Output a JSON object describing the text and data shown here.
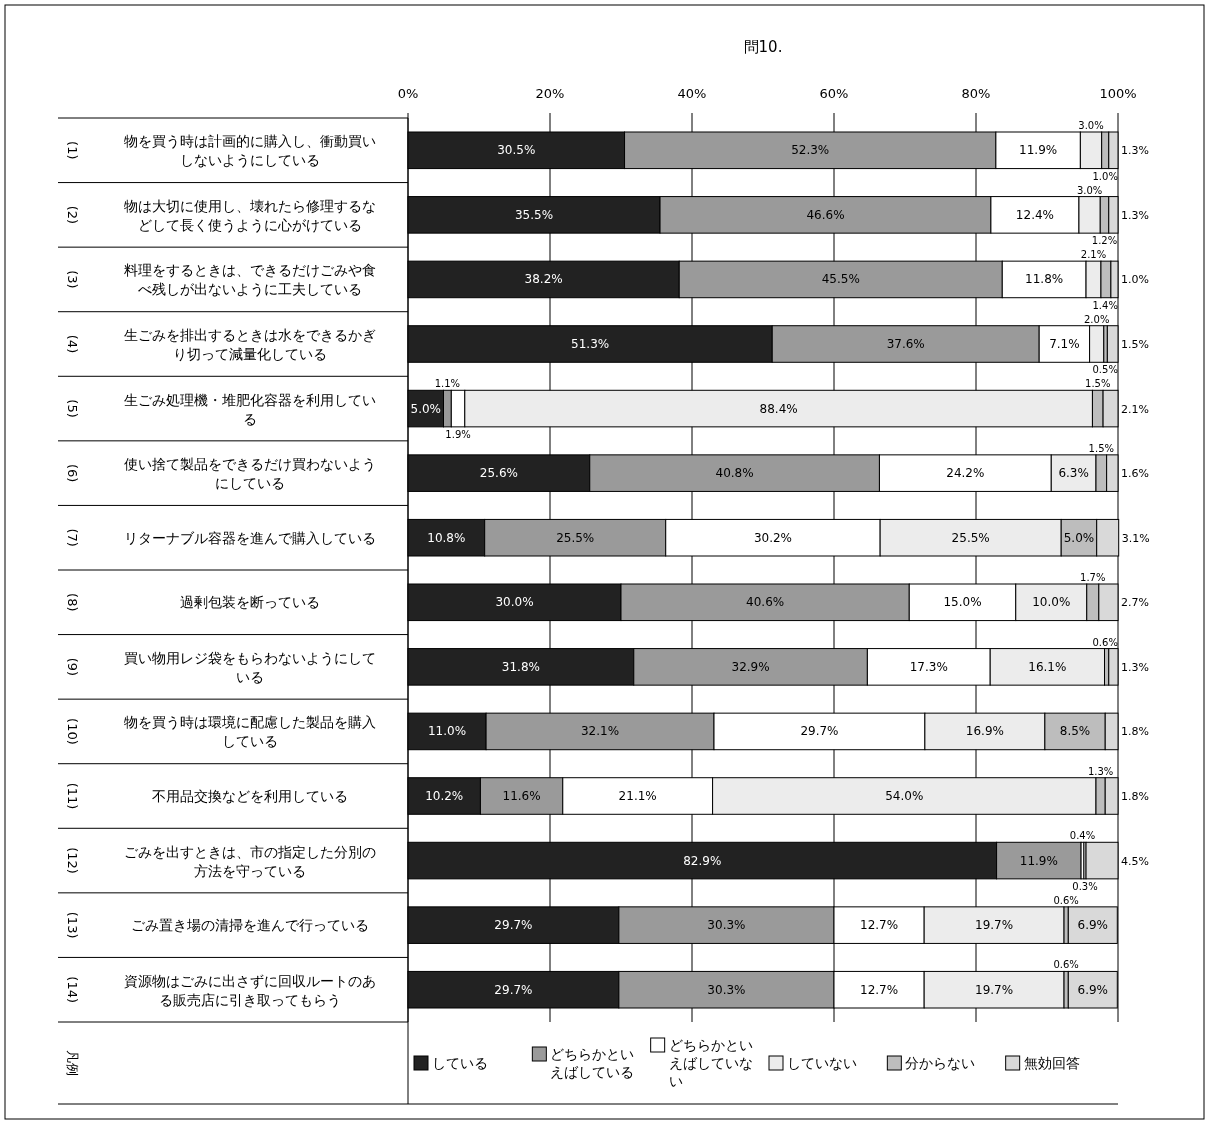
{
  "chart_data": {
    "type": "bar",
    "orientation": "horizontal",
    "stacked": true,
    "title": "問10.",
    "categories": [
      "(1) 物を買う時は計画的に購入し、衝動買いしないようにしている",
      "(2) 物は大切に使用し、壊れたら修理するなどして長く使うように心がけている",
      "(3) 料理をするときは、できるだけごみや食べ残しが出ないように工夫している",
      "(4) 生ごみを排出するときは水をできるかぎり切って減量化している",
      "(5) 生ごみ処理機・堆肥化容器を利用している",
      "(6) 使い捨て製品をできるだけ買わないようにしている",
      "(7) リターナブル容器を進んで購入している",
      "(8) 過剰包装を断っている",
      "(9) 買い物用レジ袋をもらわないようにしている",
      "(10) 物を買う時は環境に配慮した製品を購入している",
      "(11) 不用品交換などを利用している",
      "(12) ごみを出すときは、市の指定した分別の方法を守っている",
      "(13) ごみ置き場の清掃を進んで行っている",
      "(14) 資源物はごみに出さずに回収ルートのある販売店に引き取ってもらう"
    ],
    "series": [
      {
        "name": "している",
        "color": "#222222",
        "values": [
          30.5,
          35.5,
          38.2,
          51.3,
          5.0,
          25.6,
          10.8,
          30.0,
          31.8,
          11.0,
          10.2,
          82.9,
          29.7,
          29.7
        ],
        "value_labels": [
          "30.5%",
          "35.5%",
          "38.2%",
          "51.3%",
          "5.0%",
          "25.6%",
          "10.8%",
          "30.0%",
          "31.8%",
          "11.0%",
          "10.2%",
          "82.9%",
          "29.7%",
          "29.7%"
        ]
      },
      {
        "name": "どちらかといえばしている",
        "color": "#9a9a9a",
        "values": [
          52.3,
          46.6,
          45.5,
          37.6,
          1.1,
          40.8,
          25.5,
          40.6,
          32.9,
          32.1,
          11.6,
          11.9,
          30.3,
          30.3
        ],
        "value_labels": [
          "52.3%",
          "46.6%",
          "45.5%",
          "37.6%",
          "1.1%",
          "40.8%",
          "25.5%",
          "40.6%",
          "32.9%",
          "32.1%",
          "11.6%",
          "11.9%",
          "30.3%",
          "30.3%"
        ]
      },
      {
        "name": "どちらかといえばしていない",
        "color": "#ffffff",
        "values": [
          11.9,
          12.4,
          11.8,
          7.1,
          1.9,
          24.2,
          30.2,
          15.0,
          17.3,
          29.7,
          21.1,
          0.4,
          12.7,
          12.7
        ],
        "value_labels": [
          "11.9%",
          "12.4%",
          "11.8%",
          "7.1%",
          "1.9%",
          "24.2%",
          "30.2%",
          "15.0%",
          "17.3%",
          "29.7%",
          "21.1%",
          "0.4%",
          "12.7%",
          "12.7%"
        ]
      },
      {
        "name": "していない",
        "color": "#ececec",
        "values": [
          3.0,
          3.0,
          2.1,
          2.0,
          88.4,
          6.3,
          25.5,
          10.0,
          16.1,
          16.9,
          54.0,
          0.3,
          19.7,
          19.7
        ],
        "value_labels": [
          "3.0%",
          "3.0%",
          "2.1%",
          "2.0%",
          "88.4%",
          "6.3%",
          "25.5%",
          "10.0%",
          "16.1%",
          "16.9%",
          "54.0%",
          "0.3%",
          "19.7%",
          "19.7%"
        ]
      },
      {
        "name": "分からない",
        "color": "#bdbdbd",
        "values": [
          1.0,
          1.2,
          1.4,
          0.5,
          1.5,
          1.5,
          5.0,
          1.7,
          0.6,
          8.5,
          1.3,
          null,
          0.6,
          0.6
        ],
        "value_labels": [
          "1.0%",
          "1.2%",
          "1.4%",
          "0.5%",
          "1.5%",
          "1.5%",
          "5.0%",
          "1.7%",
          "0.6%",
          "8.5%",
          "1.3%",
          null,
          "0.6%",
          "0.6%"
        ]
      },
      {
        "name": "無効回答",
        "color": "#d9d9d9",
        "values": [
          1.3,
          1.3,
          1.0,
          1.5,
          2.1,
          1.6,
          3.1,
          2.7,
          1.3,
          1.8,
          1.8,
          4.5,
          6.9,
          6.9
        ],
        "value_labels": [
          "1.3%",
          "1.3%",
          "1.0%",
          "1.5%",
          "2.1%",
          "1.6%",
          "3.1%",
          "2.7%",
          "1.3%",
          "1.8%",
          "1.8%",
          "4.5%",
          "6.9%",
          "6.9%"
        ]
      }
    ],
    "xlim": [
      0,
      100
    ],
    "xticks": [
      {
        "value": 0,
        "label": "0%"
      },
      {
        "value": 20,
        "label": "20%"
      },
      {
        "value": 40,
        "label": "40%"
      },
      {
        "value": 60,
        "label": "60%"
      },
      {
        "value": 80,
        "label": "80%"
      },
      {
        "value": 100,
        "label": "100%"
      }
    ],
    "grid": "x",
    "legend": "bottom",
    "legend_title": "凡例"
  }
}
